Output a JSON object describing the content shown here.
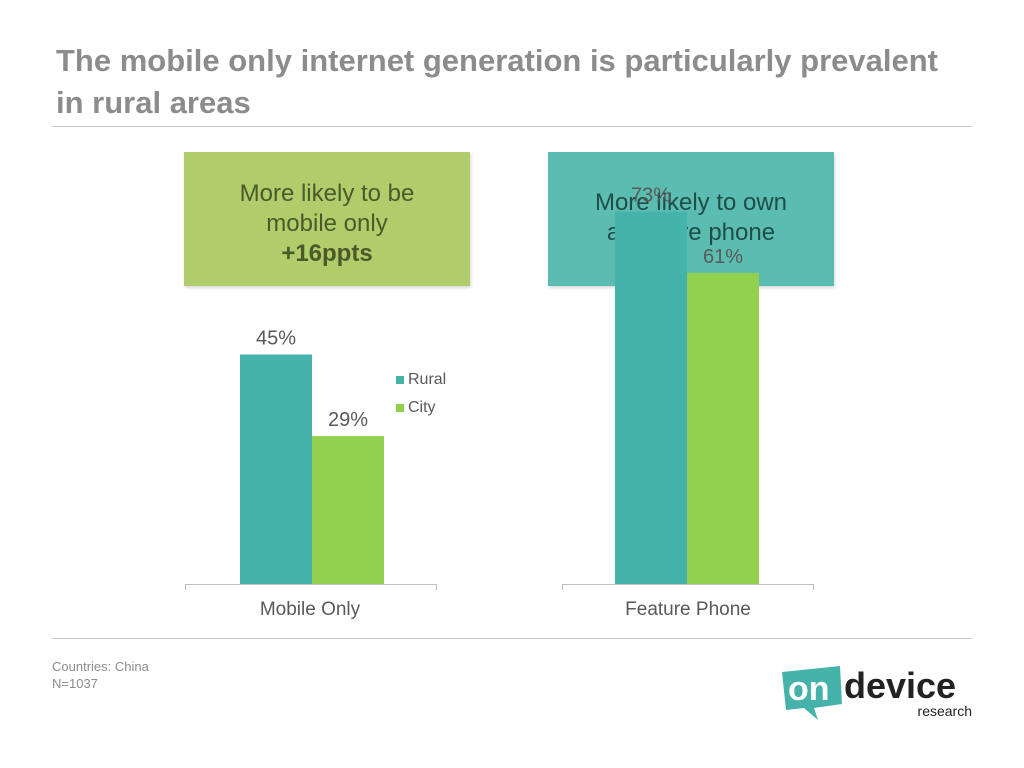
{
  "title": "The mobile only internet generation is particularly prevalent in rural areas",
  "callouts": {
    "left_line1": "More likely to be",
    "left_line2": "mobile only",
    "left_emphasis": "+16ppts",
    "right_line1": "More likely to own",
    "right_line2": "a feature phone"
  },
  "colors": {
    "rural": "#45b3a9",
    "city": "#92d050",
    "title": "#8c8c8c",
    "callout_green": "#b1cc6b",
    "callout_teal": "#5bbcb1"
  },
  "chart_data": [
    {
      "type": "bar",
      "categories": [
        "Mobile Only"
      ],
      "series": [
        {
          "name": "Rural",
          "values": [
            45
          ],
          "labels": [
            "45%"
          ]
        },
        {
          "name": "City",
          "values": [
            29
          ],
          "labels": [
            "29%"
          ]
        }
      ],
      "ylim": [
        0,
        80
      ],
      "legend": "right",
      "grid": false
    },
    {
      "type": "bar",
      "categories": [
        "Feature Phone"
      ],
      "series": [
        {
          "name": "Rural",
          "values": [
            73
          ],
          "labels": [
            "73%"
          ]
        },
        {
          "name": "City",
          "values": [
            61
          ],
          "labels": [
            "61%"
          ]
        }
      ],
      "ylim": [
        0,
        80
      ],
      "grid": false
    }
  ],
  "legend": {
    "rural": "Rural",
    "city": "City"
  },
  "footer": {
    "countries": "Countries: China",
    "n": "N=1037"
  },
  "logo": {
    "on": "on",
    "device": "device",
    "research": "research"
  }
}
